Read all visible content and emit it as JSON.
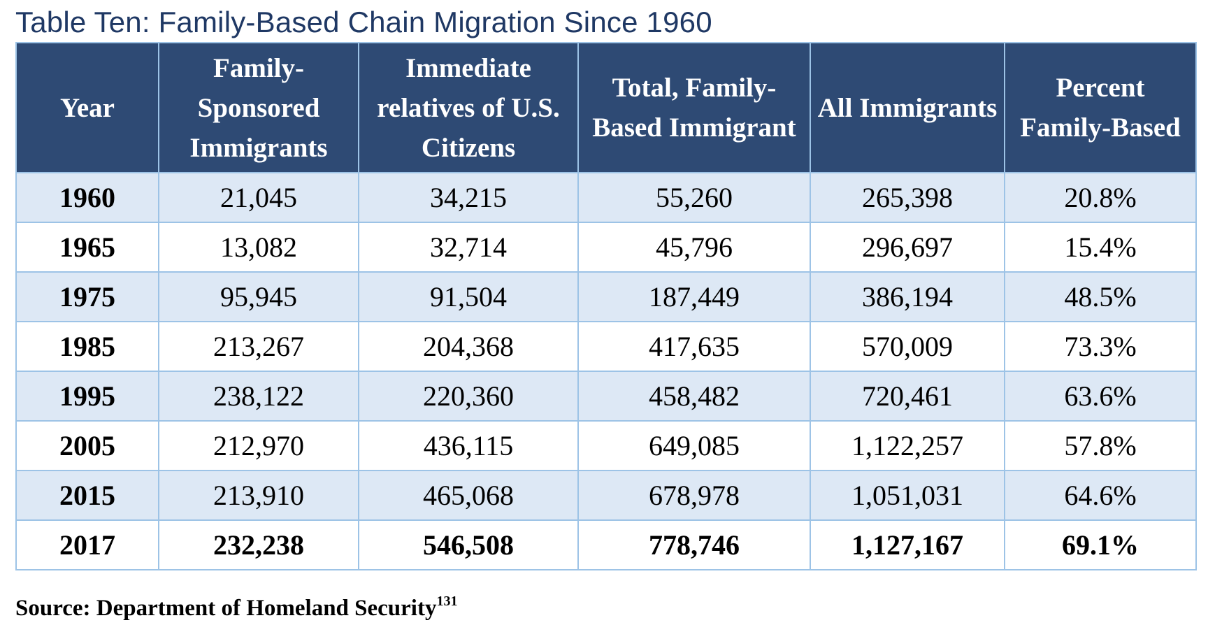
{
  "title": "Table Ten: Family-Based Chain Migration Since 1960",
  "headers": [
    "Year",
    "Family-Sponsored Immigrants",
    "Immediate relatives of U.S. Citizens",
    "Total, Family-Based Immigrant",
    "All Immigrants",
    "Percent Family-Based"
  ],
  "rows": [
    [
      "1960",
      "21,045",
      "34,215",
      "55,260",
      "265,398",
      "20.8%"
    ],
    [
      "1965",
      "13,082",
      "32,714",
      "45,796",
      "296,697",
      "15.4%"
    ],
    [
      "1975",
      "95,945",
      "91,504",
      "187,449",
      "386,194",
      "48.5%"
    ],
    [
      "1985",
      "213,267",
      "204,368",
      "417,635",
      "570,009",
      "73.3%"
    ],
    [
      "1995",
      "238,122",
      "220,360",
      "458,482",
      "720,461",
      "63.6%"
    ],
    [
      "2005",
      "212,970",
      "436,115",
      "649,085",
      "1,122,257",
      "57.8%"
    ],
    [
      "2015",
      "213,910",
      "465,068",
      "678,978",
      "1,051,031",
      "64.6%"
    ],
    [
      "2017",
      "232,238",
      "546,508",
      "778,746",
      "1,127,167",
      "69.1%"
    ]
  ],
  "colors": {
    "header_bg": "#2e4a74",
    "header_text": "#ffffff",
    "row_shade": "#dde8f5",
    "border": "#9dc3e6",
    "title": "#1f3864"
  },
  "source": {
    "text": "Source: Department of Homeland Security",
    "footnote": "131"
  }
}
